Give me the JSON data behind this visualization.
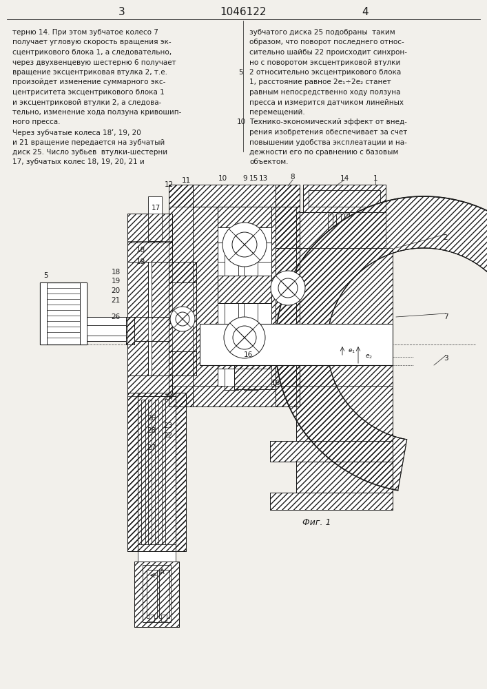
{
  "title": "1046122",
  "page_left": "3",
  "page_right": "4",
  "fig_label": "Фиг. 1",
  "bg_color": "#f2f0eb",
  "line_color": "#1a1a1a",
  "left_col_text": [
    "терню 14. При этом зубчатое колесо 7",
    "получает угловую скорость вращения эк-",
    "сцентрикового блока 1, а следовательно,",
    "через двухвенцевую шестерню 6 получает",
    "вращение эксцентриковая втулка 2, т.е.",
    "произойдет изменение суммарного экс-",
    "центриситета эксцентрикового блока 1",
    "и эксцентриковой втулки 2, а следова-",
    "тельно, изменение хода ползуна кривошип-",
    "ного пресса.",
    "Через зубчатые колеса 18ʹ, 19, 20",
    "и 21 вращение передается на зубчатый",
    "диск 25. Число зубьев  втулки-шестерни",
    "17, зубчатых колес 18, 19, 20, 21 и"
  ],
  "right_col_text": [
    "зубчатого диска 25 подобраны  таким",
    "образом, что поворот последнего относ-",
    "сительно шайбы 22 происходит синхрон-",
    "но с поворотом эксцентриковой втулки",
    "2 относительно эксцентрикового блока",
    "1, расстояние равное 2е₁÷2е₂ станет",
    "равным непосредственно ходу ползуна",
    "пресса и измерится датчиком линейных",
    "перемещений.",
    "Технико-экономический эффект от внед-",
    "рения изобретения обеспечивает за счет",
    "повышении удобства эксплеатации и на-",
    "дежности его по сравнению с базовым",
    "объектом."
  ]
}
